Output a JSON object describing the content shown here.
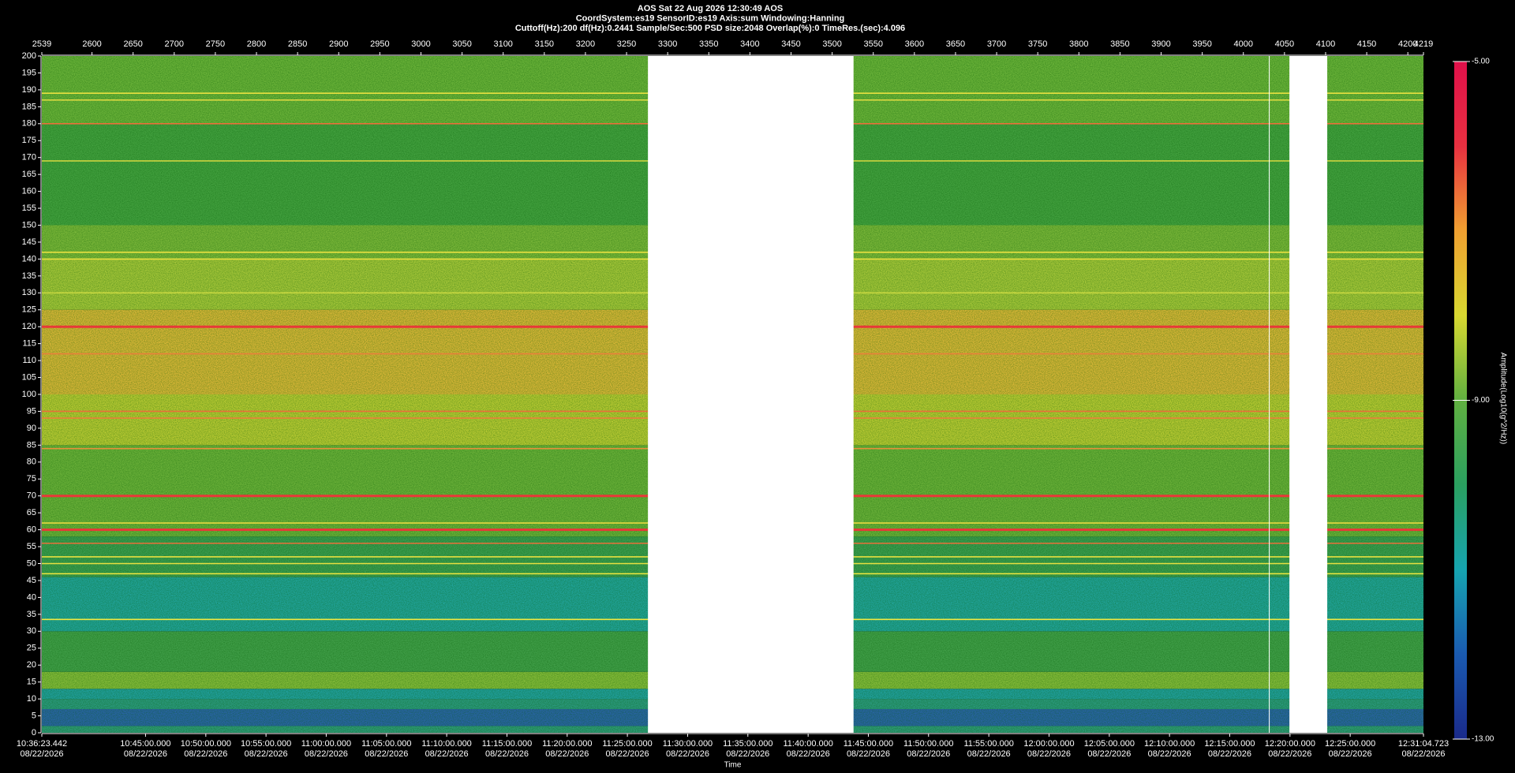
{
  "chart_data": {
    "type": "spectrogram",
    "header": [
      "AOS  Sat 22 Aug 2026 12:30:49  AOS",
      "CoordSystem:es19   SensorID:es19    Axis:sum    Windowing:Hanning",
      "Cuttoff(Hz):200       df(Hz):0.2441       Sample/Sec:500       PSD size:2048       Overlap(%):0         TimeRes.(sec):4.096"
    ],
    "xlim": [
      2539,
      4219
    ],
    "xticks": [
      2539,
      2600,
      2650,
      2700,
      2750,
      2800,
      2850,
      2900,
      2950,
      3000,
      3050,
      3100,
      3150,
      3200,
      3250,
      3300,
      3350,
      3400,
      3450,
      3500,
      3550,
      3600,
      3650,
      3700,
      3750,
      3800,
      3850,
      3900,
      3950,
      4000,
      4050,
      4100,
      4150,
      4200,
      4219
    ],
    "ylim": [
      0,
      200
    ],
    "yticks": [
      0,
      5,
      10,
      15,
      20,
      25,
      30,
      35,
      40,
      45,
      50,
      55,
      60,
      65,
      70,
      75,
      80,
      85,
      90,
      95,
      100,
      105,
      110,
      115,
      120,
      125,
      130,
      135,
      140,
      145,
      150,
      155,
      160,
      165,
      170,
      175,
      180,
      185,
      190,
      195,
      200
    ],
    "time_ticks": [
      {
        "value": 2539,
        "label": "10:36:23.442"
      },
      {
        "value": 2665.1,
        "label": "10:45:00.000"
      },
      {
        "value": 2738.4,
        "label": "10:50:00.000"
      },
      {
        "value": 2811.6,
        "label": "10:55:00.000"
      },
      {
        "value": 2884.8,
        "label": "11:00:00.000"
      },
      {
        "value": 2958.1,
        "label": "11:05:00.000"
      },
      {
        "value": 3031.3,
        "label": "11:10:00.000"
      },
      {
        "value": 3104.6,
        "label": "11:15:00.000"
      },
      {
        "value": 3177.8,
        "label": "11:20:00.000"
      },
      {
        "value": 3251.0,
        "label": "11:25:00.000"
      },
      {
        "value": 3324.3,
        "label": "11:30:00.000"
      },
      {
        "value": 3397.5,
        "label": "11:35:00.000"
      },
      {
        "value": 3470.8,
        "label": "11:40:00.000"
      },
      {
        "value": 3544.0,
        "label": "11:45:00.000"
      },
      {
        "value": 3617.2,
        "label": "11:50:00.000"
      },
      {
        "value": 3690.5,
        "label": "11:55:00.000"
      },
      {
        "value": 3763.7,
        "label": "12:00:00.000"
      },
      {
        "value": 3837.0,
        "label": "12:05:00.000"
      },
      {
        "value": 3910.2,
        "label": "12:10:00.000"
      },
      {
        "value": 3983.4,
        "label": "12:15:00.000"
      },
      {
        "value": 4056.7,
        "label": "12:20:00.000"
      },
      {
        "value": 4129.9,
        "label": "12:25:00.000"
      },
      {
        "value": 4219,
        "label": "12:31:04.723"
      }
    ],
    "date_label": "08/22/2026",
    "xlabel": "Time",
    "bands": [
      {
        "from": 0,
        "to": 2,
        "color": "#2f9a7a"
      },
      {
        "from": 2,
        "to": 7,
        "color": "#2a64a8"
      },
      {
        "from": 7,
        "to": 10,
        "color": "#2c9a80"
      },
      {
        "from": 10,
        "to": 13,
        "color": "#22a0a0"
      },
      {
        "from": 13,
        "to": 18,
        "color": "#86bc3a"
      },
      {
        "from": 18,
        "to": 30,
        "color": "#42a04a"
      },
      {
        "from": 30,
        "to": 46,
        "color": "#22a49c"
      },
      {
        "from": 46,
        "to": 58,
        "color": "#3c9e52"
      },
      {
        "from": 58,
        "to": 85,
        "color": "#6cb23a"
      },
      {
        "from": 85,
        "to": 100,
        "color": "#bccc34"
      },
      {
        "from": 100,
        "to": 125,
        "color": "#dcb838"
      },
      {
        "from": 125,
        "to": 140,
        "color": "#a8c83a"
      },
      {
        "from": 140,
        "to": 150,
        "color": "#7cb83a"
      },
      {
        "from": 150,
        "to": 180,
        "color": "#44a240"
      },
      {
        "from": 180,
        "to": 200,
        "color": "#6cb43a"
      }
    ],
    "lines": [
      {
        "freq": 120,
        "color": "#e83838"
      },
      {
        "freq": 70,
        "color": "#e83838"
      },
      {
        "freq": 60,
        "color": "#e83838"
      },
      {
        "freq": 56,
        "color": "#e8703a"
      },
      {
        "freq": 180,
        "color": "#e8703a"
      },
      {
        "freq": 95,
        "color": "#e8703a"
      },
      {
        "freq": 93,
        "color": "#e8803a"
      },
      {
        "freq": 84,
        "color": "#e8903a"
      },
      {
        "freq": 112,
        "color": "#e8803a"
      },
      {
        "freq": 189,
        "color": "#e8e040"
      },
      {
        "freq": 187,
        "color": "#d8d840"
      },
      {
        "freq": 142,
        "color": "#e8e040"
      },
      {
        "freq": 140,
        "color": "#e8e040"
      },
      {
        "freq": 169,
        "color": "#d8d840"
      },
      {
        "freq": 62,
        "color": "#e8d840"
      },
      {
        "freq": 52,
        "color": "#e8e040"
      },
      {
        "freq": 50,
        "color": "#e8e040"
      },
      {
        "freq": 47,
        "color": "#f0e840"
      },
      {
        "freq": 33.5,
        "color": "#f0e840"
      },
      {
        "freq": 130,
        "color": "#c8d840"
      }
    ],
    "gaps": [
      [
        3276,
        3526
      ],
      [
        4056,
        4102
      ],
      [
        4031,
        4032
      ]
    ],
    "colormap": [
      "#1a2a8a",
      "#1a5ab0",
      "#16a4b0",
      "#2aa060",
      "#60b040",
      "#d8d830",
      "#f0a030",
      "#e83040",
      "#e0104a"
    ],
    "clim": [
      -13,
      -5
    ],
    "cticks": [
      {
        "value": -5,
        "label": "-5.00"
      },
      {
        "value": -9,
        "label": "-9.00"
      },
      {
        "value": -13,
        "label": "-13.00"
      }
    ],
    "colorbar_label": "Amplitude(Log10(g^2/Hz))"
  }
}
